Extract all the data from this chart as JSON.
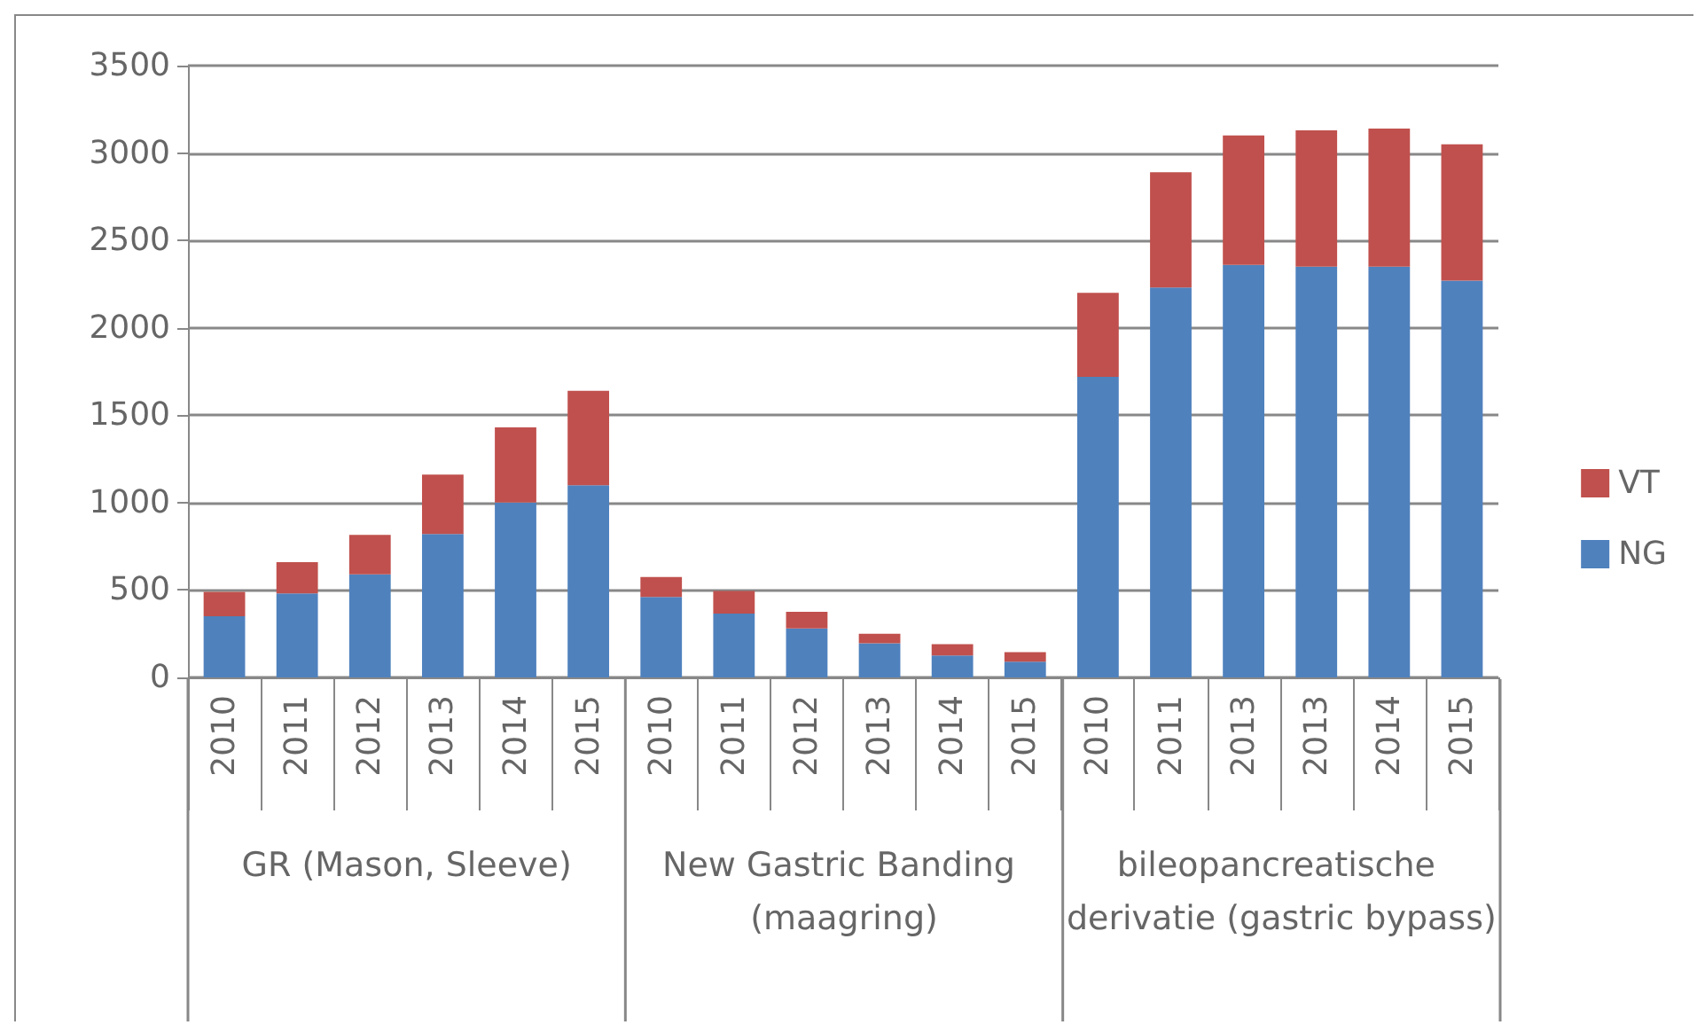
{
  "chart_data": {
    "type": "bar",
    "stacked": true,
    "categories": [
      "2010",
      "2011",
      "2012",
      "2013",
      "2014",
      "2015",
      "2010",
      "2011",
      "2012",
      "2013",
      "2014",
      "2015",
      "2010",
      "2011",
      "2013",
      "2013",
      "2014",
      "2015"
    ],
    "series": [
      {
        "name": "NG",
        "color": "#4f81bd",
        "values": [
          350,
          480,
          590,
          820,
          1000,
          1100,
          460,
          365,
          280,
          195,
          125,
          90,
          1720,
          2230,
          2360,
          2350,
          2350,
          2270
        ]
      },
      {
        "name": "VT",
        "color": "#c0504d",
        "values": [
          140,
          180,
          225,
          340,
          430,
          540,
          115,
          130,
          95,
          55,
          65,
          55,
          480,
          660,
          740,
          780,
          790,
          780
        ]
      }
    ],
    "annotations": [
      "GR (Mason, Sleeve)",
      "New Gastric Banding (maagring)",
      "bileopancreatische derivatie (gastric bypass)"
    ],
    "ylim": [
      0,
      3500
    ],
    "yticks": [
      0,
      500,
      1000,
      1500,
      2000,
      2500,
      3000,
      3500
    ],
    "grid": "y",
    "legend": "right"
  }
}
